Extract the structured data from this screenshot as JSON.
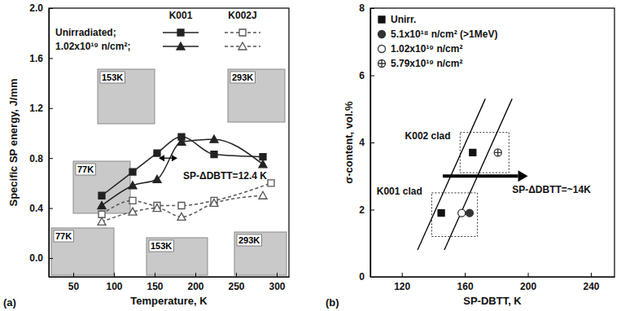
{
  "chart_data": [
    {
      "type": "line",
      "panel": "(a)",
      "x_label": "Temperature, K",
      "y_label": "Specific SP energy, J/mm",
      "xlim": [
        20,
        315
      ],
      "xticks": [
        50,
        100,
        150,
        200,
        250,
        300
      ],
      "ylim": [
        -0.15,
        2.0
      ],
      "yticks": [
        {
          "value": 0,
          "label": "0.0"
        },
        0.4,
        0.8,
        1.2,
        1.6,
        {
          "value": 2,
          "label": "2.0"
        }
      ],
      "legend": "top-left",
      "series": [
        {
          "name": "K001",
          "condition": "Unirradiated;",
          "color": "#222222",
          "marker": "square",
          "line_style": "solid",
          "x": [
            85,
            123,
            153,
            183,
            223,
            283
          ],
          "values": [
            0.5,
            0.69,
            0.84,
            0.97,
            0.83,
            0.81
          ]
        },
        {
          "name": "K001",
          "condition": "1.02x10¹⁹ n/cm²;",
          "color": "#222222",
          "marker": "triangle",
          "line_style": "solid",
          "x": [
            85,
            123,
            153,
            183,
            223,
            283
          ],
          "values": [
            0.42,
            0.58,
            0.63,
            0.93,
            0.95,
            0.75
          ]
        },
        {
          "name": "K002J",
          "condition": "Unirradiated;",
          "color": "#555555",
          "marker": "open-square",
          "line_style": "dashed",
          "x": [
            85,
            123,
            153,
            183,
            223,
            293
          ],
          "values": [
            0.35,
            0.46,
            0.42,
            0.42,
            0.46,
            0.6
          ]
        },
        {
          "name": "K002J",
          "condition": "1.02x10¹⁹ n/cm²;",
          "color": "#555555",
          "marker": "open-triangle",
          "line_style": "dashed",
          "x": [
            85,
            123,
            153,
            183,
            223,
            283
          ],
          "values": [
            0.29,
            0.37,
            0.4,
            0.33,
            0.44,
            0.5
          ]
        }
      ],
      "annotations": [
        {
          "text": "SP-ΔDBTT=12.4 K",
          "x": 185,
          "y": 0.63
        }
      ],
      "arrows": [
        {
          "x": [
            155,
            178
          ],
          "y": [
            0.8,
            0.8
          ],
          "line_style": "double-arrow"
        }
      ],
      "insets": [
        "153K",
        "293K",
        "77K",
        "77K",
        "153K",
        "293K"
      ]
    },
    {
      "type": "scatter",
      "panel": "(b)",
      "x_label": "SP-DBTT, K",
      "y_label": "σ-content, vol.%",
      "xlim": [
        100,
        255
      ],
      "xticks": [
        120,
        160,
        200,
        240
      ],
      "ylim": [
        0,
        8
      ],
      "yticks": [
        0,
        2,
        4,
        6,
        8
      ],
      "legend": "top-left",
      "series": [
        {
          "name": "Unirr.",
          "color": "#111111",
          "marker": "square",
          "x": [
            145,
            165
          ],
          "values": [
            1.9,
            3.7
          ]
        },
        {
          "name": "5.1x10¹⁸ n/cm² (>1MeV)",
          "color": "#333333",
          "marker": "circle",
          "x": [
            163
          ],
          "values": [
            1.9
          ]
        },
        {
          "name": "1.02x10¹⁹ n/cm²",
          "color": "#333333",
          "marker": "open-circle",
          "x": [
            158
          ],
          "values": [
            1.9
          ]
        },
        {
          "name": "5.79x10¹⁹ n/cm²",
          "color": "#333333",
          "marker": "crossed-circle",
          "x": [
            181
          ],
          "values": [
            3.7
          ]
        }
      ],
      "boxes": [
        {
          "x": [
            139,
            168
          ],
          "y": [
            1.2,
            2.5
          ]
        },
        {
          "x": [
            157,
            188
          ],
          "y": [
            3.1,
            4.3
          ]
        }
      ],
      "fit_lines": [
        {
          "x": [
            130,
            173
          ],
          "y": [
            0.8,
            5.3
          ]
        },
        {
          "x": [
            147,
            190
          ],
          "y": [
            0.8,
            5.3
          ]
        }
      ],
      "annotations": [
        {
          "text": "K002 clad",
          "x": 122,
          "y": 4.1
        },
        {
          "text": "K001 clad",
          "x": 104,
          "y": 2.45
        },
        {
          "text": "SP-ΔDBTT=~14K",
          "x": 190,
          "y": 2.5
        }
      ],
      "arrows": [
        {
          "x": [
            146,
            200
          ],
          "y": [
            3.0,
            3.0
          ],
          "line_style": "arrow"
        }
      ]
    }
  ]
}
